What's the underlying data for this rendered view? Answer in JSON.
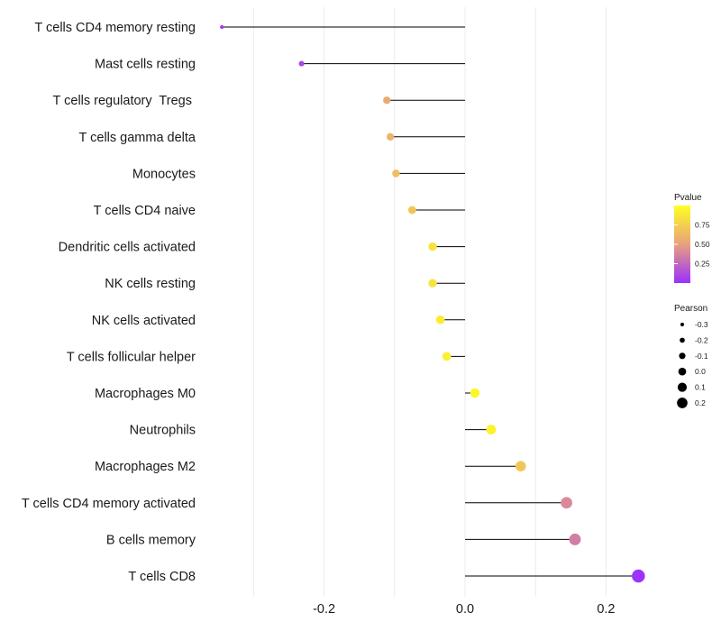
{
  "chart_data": {
    "type": "lollipop",
    "title": "",
    "xlabel": "",
    "ylabel": "",
    "xlim": [
      -0.35,
      0.255
    ],
    "xticks": [
      {
        "value": -0.2,
        "label": "-0.2"
      },
      {
        "value": 0.0,
        "label": "0.0"
      },
      {
        "value": 0.2,
        "label": "0.2"
      }
    ],
    "grid": true,
    "categories": [
      "T cells CD4 memory resting",
      "Mast cells resting",
      "T cells regulatory  Tregs ",
      "T cells gamma delta",
      "Monocytes",
      "T cells CD4 naive",
      "Dendritic cells activated",
      "NK cells resting",
      "NK cells activated",
      "T cells follicular helper",
      "Macrophages M0",
      "Neutrophils",
      "Macrophages M2",
      "T cells CD4 memory activated",
      "B cells memory",
      "T cells CD8"
    ],
    "pearson": [
      -0.345,
      -0.232,
      -0.111,
      -0.106,
      -0.098,
      -0.075,
      -0.046,
      -0.046,
      -0.035,
      -0.026,
      0.014,
      0.037,
      0.079,
      0.144,
      0.156,
      0.246
    ],
    "pvalue": [
      0.02,
      0.1,
      0.55,
      0.6,
      0.65,
      0.7,
      0.85,
      0.85,
      0.9,
      0.92,
      0.95,
      0.93,
      0.7,
      0.4,
      0.35,
      0.02
    ],
    "legend_pvalue": {
      "title": "Pvalue",
      "placement": "right",
      "colors": [
        "#9b30ff",
        "#e8a07e",
        "#ffff22"
      ],
      "range": [
        0,
        1
      ],
      "ticks": [
        {
          "value": 0.75,
          "label": "0.75"
        },
        {
          "value": 0.5,
          "label": "0.50"
        },
        {
          "value": 0.25,
          "label": "0.25"
        }
      ]
    },
    "legend_pearson": {
      "title": "Pearson",
      "placement": "right",
      "entries": [
        {
          "value": -0.3,
          "label": "-0.3"
        },
        {
          "value": -0.2,
          "label": "-0.2"
        },
        {
          "value": -0.1,
          "label": "-0.1"
        },
        {
          "value": 0.0,
          "label": "0.0"
        },
        {
          "value": 0.1,
          "label": "0.1"
        },
        {
          "value": 0.2,
          "label": "0.2"
        }
      ]
    }
  }
}
